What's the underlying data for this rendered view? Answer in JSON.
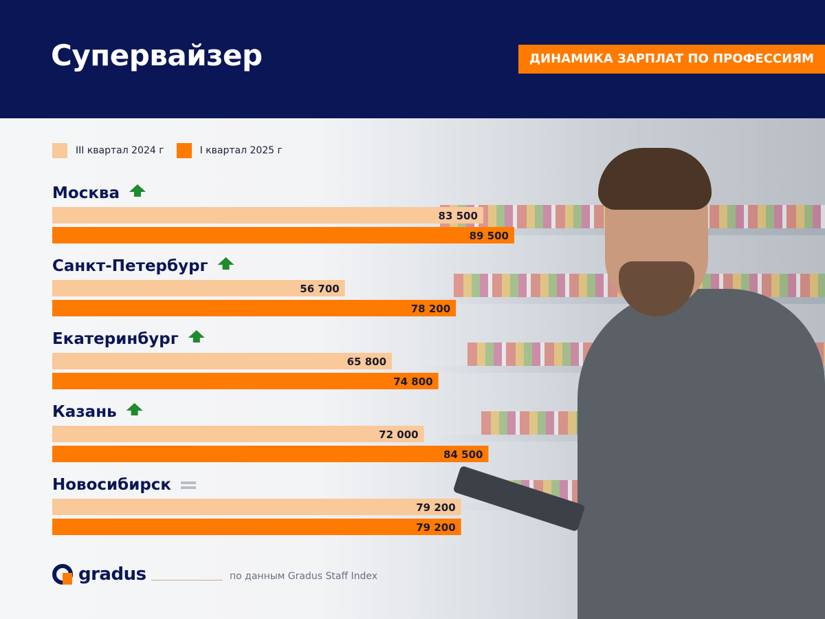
{
  "header": {
    "title": "Супервайзер",
    "badge": "ДИНАМИКА ЗАРПЛАТ ПО ПРОФЕССИЯМ"
  },
  "colors": {
    "header_bg": "#0b1657",
    "badge_bg": "#ff7a00",
    "bar_q3_2024": "#f9c99a",
    "bar_q1_2025": "#ff7a00",
    "up_arrow": "#1f8a2e",
    "equal_sign": "#b9bcc4"
  },
  "legend": {
    "items": [
      {
        "label": "III квартал 2024 г",
        "color": "#f9c99a"
      },
      {
        "label": "I квартал 2025 г",
        "color": "#ff7a00"
      }
    ]
  },
  "chart_data": {
    "type": "bar",
    "orientation": "horizontal",
    "title": "Супервайзер",
    "categories": [
      "Москва",
      "Санкт-Петербург",
      "Екатеринбург",
      "Казань",
      "Новосибирск"
    ],
    "trend": [
      "up",
      "up",
      "up",
      "up",
      "equal"
    ],
    "series": [
      {
        "name": "III квартал 2024 г",
        "values": [
          83500,
          56700,
          65800,
          72000,
          79200
        ],
        "labels": [
          "83 500",
          "56 700",
          "65 800",
          "72 000",
          "79 200"
        ]
      },
      {
        "name": "I квартал 2025 г",
        "values": [
          89500,
          78200,
          74800,
          84500,
          79200
        ],
        "labels": [
          "89 500",
          "78 200",
          "74 800",
          "84 500",
          "79 200"
        ]
      }
    ],
    "xlim": [
      0,
      89500
    ],
    "grid": false,
    "legend_position": "top-left"
  },
  "footer": {
    "logo_text": "gradus",
    "source": "по данным Gradus Staff Index"
  },
  "icons": {
    "trend_up": "up-arrow-icon",
    "trend_equal": "equal-icon",
    "logo": "gradus-logo-icon"
  }
}
